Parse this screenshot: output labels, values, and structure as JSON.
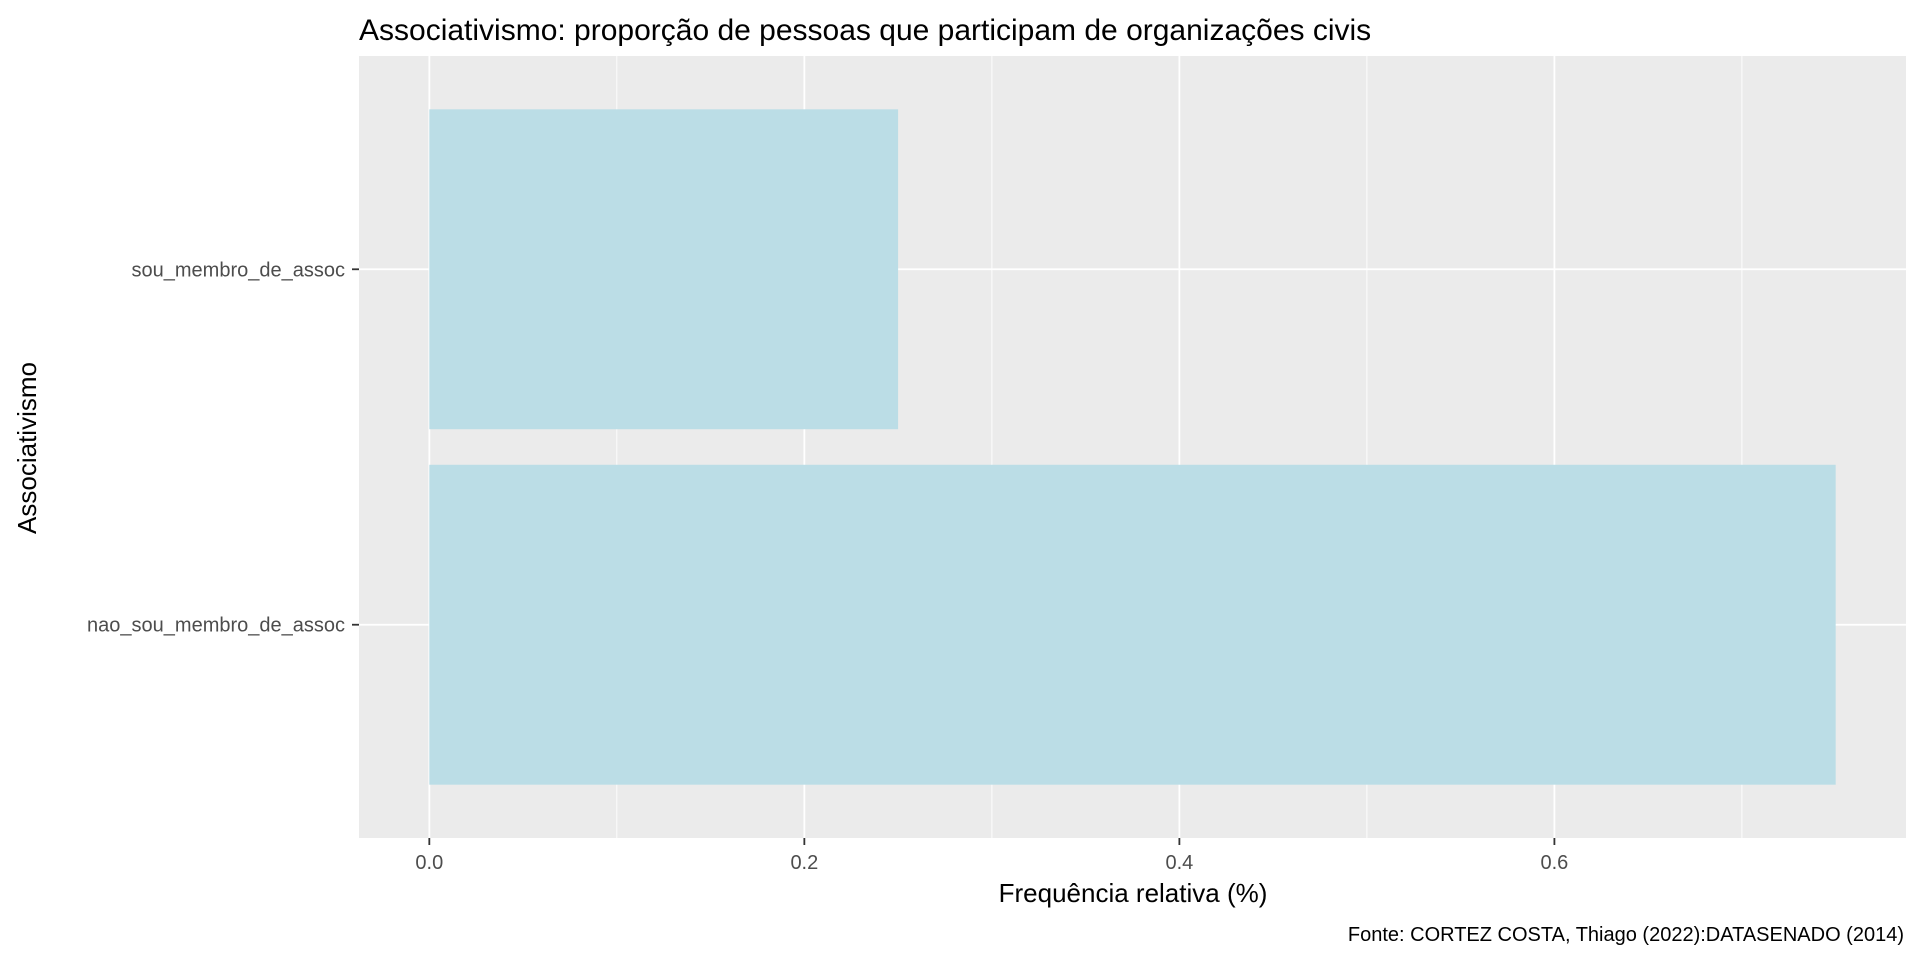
{
  "chart_data": {
    "type": "bar",
    "orientation": "horizontal",
    "title": "Associativismo: proporção de pessoas que participam de organizações civis",
    "xlabel": "Frequência relativa (%)",
    "ylabel": "Associativismo",
    "caption": "Fonte: CORTEZ COSTA, Thiago (2022):DATASENADO (2014)",
    "categories": [
      "nao_sou_membro_de_assoc",
      "sou_membro_de_assoc"
    ],
    "values": [
      0.75,
      0.25
    ],
    "xlim": [
      -0.0375,
      0.7875
    ],
    "x_ticks": [
      0.0,
      0.2,
      0.4,
      0.6
    ],
    "x_tick_labels": [
      "0.0",
      "0.2",
      "0.4",
      "0.6"
    ],
    "x_minor_ticks": [
      0.1,
      0.3,
      0.5,
      0.7
    ],
    "grid": true,
    "legend": "none",
    "colors": {
      "bar": "#bbdde6",
      "panel_background": "#ebebeb",
      "grid": "#ffffff"
    }
  }
}
